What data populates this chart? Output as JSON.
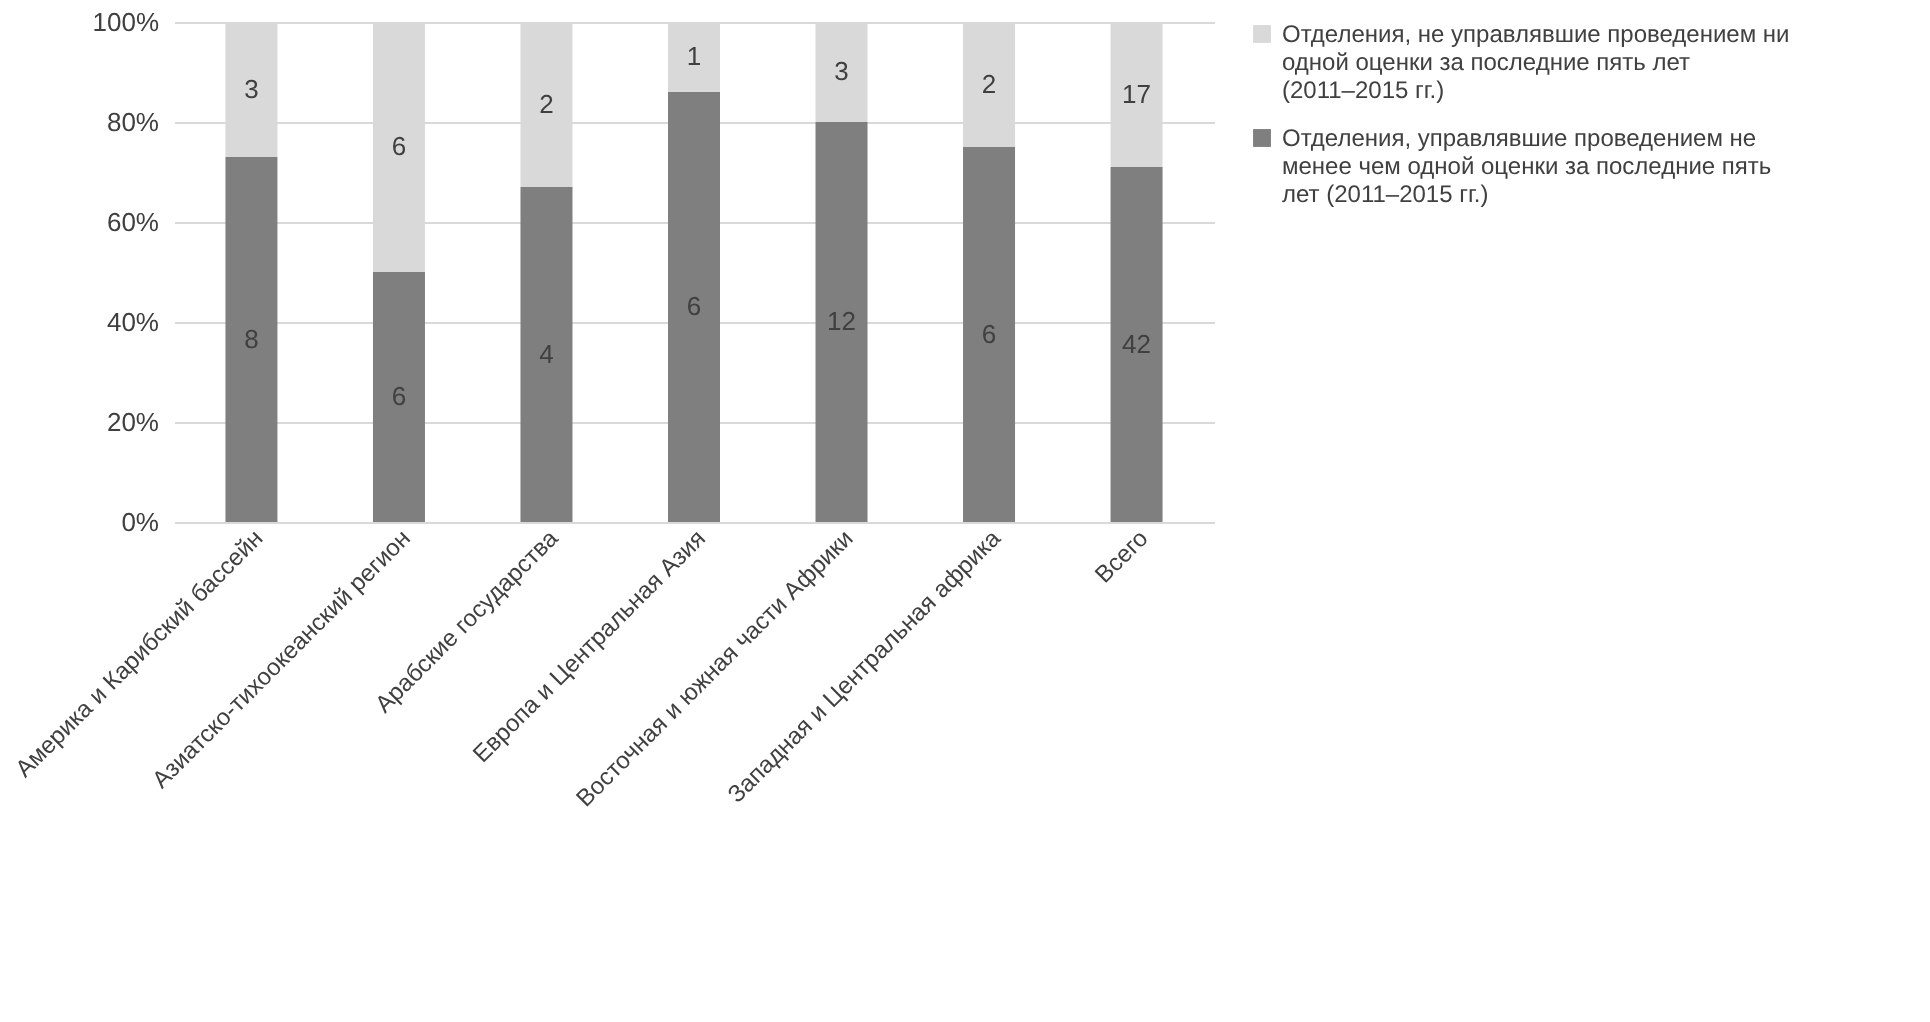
{
  "chart_data": {
    "type": "bar",
    "stacked": true,
    "categories": [
      "Америка и Карибский бассейн",
      "Азиатско-тихоокеанский регион",
      "Арабские государства",
      "Европа и Центральная Азия",
      "Восточная и южная части Африки",
      "Западная и Центральная африка",
      "Всего"
    ],
    "series": [
      {
        "name": "Отделения, управлявшие проведением не менее чем одной оценки за последние пять лет (2011–2015 гг.)",
        "color": "#7f7f7f",
        "values": [
          73,
          50,
          67,
          86,
          80,
          75,
          71
        ]
      },
      {
        "name": "Отделения, не управлявшие проведением ни одной оценки за последние пять лет (2011–2015 гг.)",
        "color": "#d9d9d9",
        "values": [
          27,
          50,
          33,
          14,
          20,
          25,
          29
        ]
      }
    ],
    "annotations": [
      "8",
      "6",
      "4",
      "6",
      "12",
      "6",
      "42",
      "3",
      "6",
      "2",
      "1",
      "3",
      "2",
      "17"
    ],
    "ylim": [
      0,
      100
    ],
    "yticks": [
      {
        "value": 0,
        "label": "0%"
      },
      {
        "value": 20,
        "label": "20%"
      },
      {
        "value": 40,
        "label": "40%"
      },
      {
        "value": 60,
        "label": "60%"
      },
      {
        "value": 80,
        "label": "80%"
      },
      {
        "value": 100,
        "label": "100%"
      }
    ],
    "grid": "y",
    "legend": "right"
  }
}
